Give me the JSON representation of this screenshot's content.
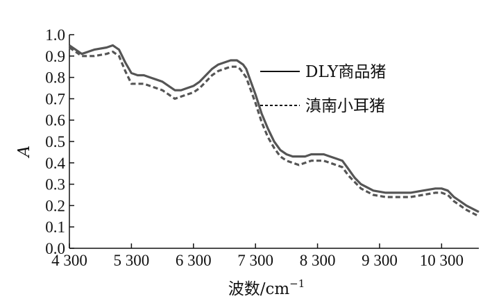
{
  "chart_data": {
    "type": "line",
    "xlabel": "波数/cm",
    "xlabel_sup": "−1",
    "ylabel": "A",
    "xlim": [
      4300,
      10900
    ],
    "ylim": [
      0.0,
      1.0
    ],
    "x_ticks": [
      4300,
      5300,
      6300,
      7300,
      8300,
      9300,
      10300
    ],
    "x_tick_labels": [
      "4 300",
      "5 300",
      "6 300",
      "7 300",
      "8 300",
      "9 300",
      "10 300"
    ],
    "y_ticks": [
      0.0,
      0.1,
      0.2,
      0.3,
      0.4,
      0.5,
      0.6,
      0.7,
      0.8,
      0.9,
      1.0
    ],
    "y_tick_labels": [
      "0.0",
      "0.1",
      "0.2",
      "0.3",
      "0.4",
      "0.5",
      "0.6",
      "0.7",
      "0.8",
      "0.9",
      "1.0"
    ],
    "grid": false,
    "legend_position": "top-right",
    "series": [
      {
        "name": "DLY商品猪",
        "style": "solid",
        "color": "#555555",
        "x": [
          4300,
          4500,
          4700,
          4900,
          5000,
          5050,
          5100,
          5200,
          5300,
          5400,
          5500,
          5600,
          5700,
          5800,
          5900,
          6000,
          6100,
          6200,
          6300,
          6400,
          6500,
          6600,
          6700,
          6800,
          6900,
          7000,
          7050,
          7100,
          7150,
          7200,
          7300,
          7400,
          7500,
          7600,
          7700,
          7800,
          7900,
          8000,
          8100,
          8200,
          8300,
          8400,
          8500,
          8600,
          8700,
          8800,
          8900,
          9000,
          9200,
          9400,
          9600,
          9800,
          10000,
          10200,
          10300,
          10400,
          10500,
          10600,
          10700,
          10900
        ],
        "y": [
          0.95,
          0.91,
          0.93,
          0.94,
          0.95,
          0.94,
          0.93,
          0.87,
          0.82,
          0.81,
          0.81,
          0.8,
          0.79,
          0.78,
          0.76,
          0.74,
          0.74,
          0.75,
          0.76,
          0.78,
          0.81,
          0.84,
          0.86,
          0.87,
          0.88,
          0.88,
          0.87,
          0.86,
          0.84,
          0.8,
          0.72,
          0.63,
          0.56,
          0.5,
          0.46,
          0.44,
          0.43,
          0.43,
          0.43,
          0.44,
          0.44,
          0.44,
          0.43,
          0.42,
          0.41,
          0.37,
          0.33,
          0.3,
          0.27,
          0.26,
          0.26,
          0.26,
          0.27,
          0.28,
          0.28,
          0.27,
          0.24,
          0.22,
          0.2,
          0.17
        ]
      },
      {
        "name": "滇南小耳猪",
        "style": "dashed",
        "color": "#555555",
        "x": [
          4300,
          4500,
          4700,
          4900,
          5000,
          5050,
          5100,
          5200,
          5300,
          5400,
          5500,
          5600,
          5700,
          5800,
          5900,
          6000,
          6100,
          6200,
          6300,
          6400,
          6500,
          6600,
          6700,
          6800,
          6900,
          7000,
          7050,
          7100,
          7150,
          7200,
          7300,
          7400,
          7500,
          7600,
          7700,
          7800,
          7900,
          8000,
          8100,
          8200,
          8300,
          8400,
          8500,
          8600,
          8700,
          8800,
          8900,
          9000,
          9200,
          9400,
          9600,
          9800,
          10000,
          10200,
          10300,
          10400,
          10500,
          10600,
          10700,
          10900
        ],
        "y": [
          0.94,
          0.9,
          0.9,
          0.91,
          0.92,
          0.91,
          0.9,
          0.83,
          0.77,
          0.77,
          0.77,
          0.76,
          0.75,
          0.74,
          0.72,
          0.7,
          0.71,
          0.72,
          0.73,
          0.75,
          0.78,
          0.81,
          0.83,
          0.84,
          0.85,
          0.85,
          0.84,
          0.82,
          0.8,
          0.76,
          0.68,
          0.59,
          0.52,
          0.47,
          0.43,
          0.41,
          0.4,
          0.39,
          0.4,
          0.41,
          0.41,
          0.41,
          0.4,
          0.39,
          0.38,
          0.34,
          0.31,
          0.28,
          0.25,
          0.24,
          0.24,
          0.24,
          0.25,
          0.26,
          0.26,
          0.25,
          0.22,
          0.2,
          0.18,
          0.15
        ]
      }
    ]
  }
}
